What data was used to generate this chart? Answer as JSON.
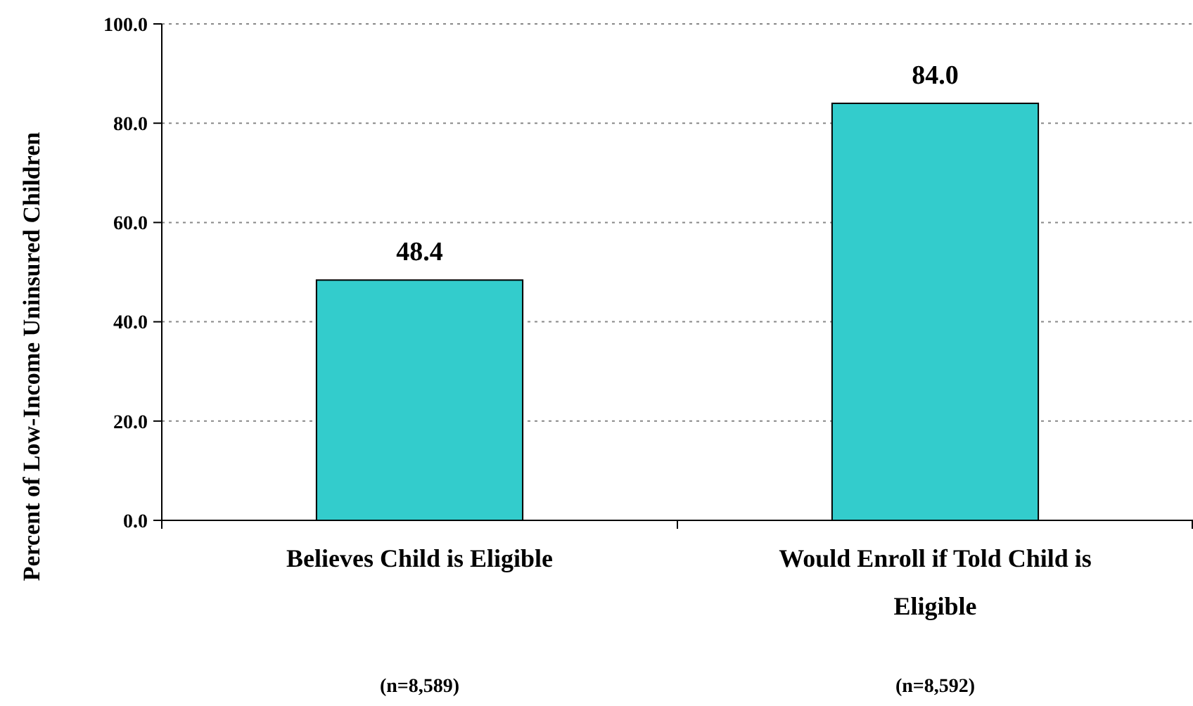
{
  "chart_data": {
    "type": "bar",
    "ylabel": "Percent of Low-Income Uninsured Children",
    "categories": [
      "Believes Child is Eligible",
      "Would Enroll if Told Child is Eligible"
    ],
    "values": [
      48.4,
      84.0
    ],
    "value_labels": [
      "48.4",
      "84.0"
    ],
    "color": "#33cccc",
    "ylim": [
      0,
      100
    ],
    "yticks": [
      {
        "value": 0,
        "label": "0.0"
      },
      {
        "value": 20,
        "label": "20.0"
      },
      {
        "value": 40,
        "label": "40.0"
      },
      {
        "value": 60,
        "label": "60.0"
      },
      {
        "value": 80,
        "label": "80.0"
      },
      {
        "value": 100,
        "label": "100.0"
      }
    ],
    "grid": "y",
    "annotations": [
      "(n=8,589)",
      "(n=8,592)"
    ]
  }
}
